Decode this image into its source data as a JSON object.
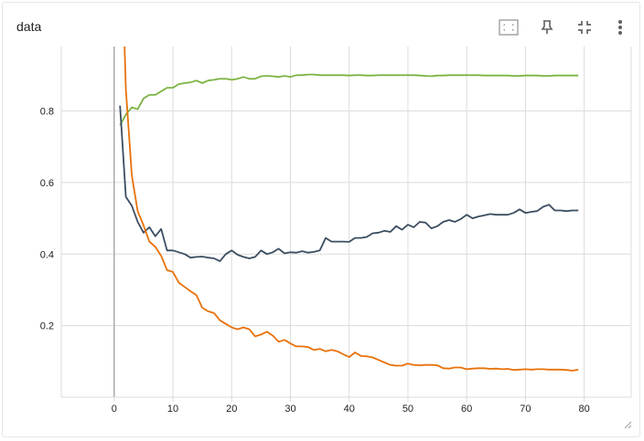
{
  "card": {
    "title": "data"
  },
  "toolbar": {
    "icons": [
      "fit-domain-icon",
      "pin-icon",
      "collapse-icon",
      "more-vert-icon"
    ]
  },
  "colors": {
    "grid": "#dcdcdc",
    "axis": "#9e9e9e",
    "series": [
      "#7cb342",
      "#3b4d61",
      "#e8710a"
    ]
  },
  "chart_data": {
    "type": "line",
    "title": "data",
    "xlabel": "",
    "ylabel": "",
    "xlim": [
      -9,
      88
    ],
    "ylim": [
      0,
      0.98
    ],
    "xticks": [
      0,
      10,
      20,
      30,
      40,
      50,
      60,
      70,
      80
    ],
    "xtick_labels": [
      "0",
      "10",
      "20",
      "30",
      "40",
      "50",
      "60",
      "70",
      "80"
    ],
    "yticks": [
      0.2,
      0.4,
      0.6,
      0.8
    ],
    "ytick_labels": [
      "0.2",
      "0.4",
      "0.6",
      "0.8"
    ],
    "grid": true,
    "legend": "none",
    "series": [
      {
        "color": "#7cb342",
        "x": [
          1,
          2,
          3,
          4,
          5,
          6,
          7,
          8,
          9,
          10,
          11,
          12,
          13,
          14,
          15,
          16,
          17,
          18,
          19,
          20,
          21,
          22,
          23,
          24,
          25,
          26,
          27,
          28,
          29,
          30,
          31,
          32,
          33,
          34,
          35,
          36,
          37,
          38,
          39,
          40,
          41,
          42,
          43,
          44,
          45,
          46,
          47,
          48,
          49,
          50,
          51,
          52,
          53,
          54,
          55,
          56,
          57,
          58,
          59,
          60,
          61,
          62,
          63,
          64,
          65,
          66,
          67,
          68,
          69,
          70,
          71,
          72,
          73,
          74,
          75,
          76,
          77,
          78,
          79
        ],
        "y": [
          0.76,
          0.79,
          0.81,
          0.805,
          0.835,
          0.845,
          0.845,
          0.855,
          0.865,
          0.865,
          0.875,
          0.878,
          0.88,
          0.885,
          0.878,
          0.885,
          0.887,
          0.89,
          0.89,
          0.887,
          0.89,
          0.895,
          0.89,
          0.89,
          0.897,
          0.898,
          0.897,
          0.895,
          0.898,
          0.895,
          0.9,
          0.9,
          0.902,
          0.902,
          0.9,
          0.9,
          0.9,
          0.9,
          0.9,
          0.899,
          0.9,
          0.9,
          0.899,
          0.899,
          0.9,
          0.9,
          0.9,
          0.9,
          0.9,
          0.9,
          0.9,
          0.899,
          0.898,
          0.897,
          0.899,
          0.899,
          0.9,
          0.9,
          0.9,
          0.9,
          0.9,
          0.9,
          0.899,
          0.899,
          0.899,
          0.899,
          0.899,
          0.898,
          0.898,
          0.899,
          0.899,
          0.899,
          0.898,
          0.898,
          0.899,
          0.899,
          0.899,
          0.899,
          0.899
        ]
      },
      {
        "color": "#3b4d61",
        "x": [
          1,
          2,
          3,
          4,
          5,
          6,
          7,
          8,
          9,
          10,
          11,
          12,
          13,
          14,
          15,
          16,
          17,
          18,
          19,
          20,
          21,
          22,
          23,
          24,
          25,
          26,
          27,
          28,
          29,
          30,
          31,
          32,
          33,
          34,
          35,
          36,
          37,
          38,
          39,
          40,
          41,
          42,
          43,
          44,
          45,
          46,
          47,
          48,
          49,
          50,
          51,
          52,
          53,
          54,
          55,
          56,
          57,
          58,
          59,
          60,
          61,
          62,
          63,
          64,
          65,
          66,
          67,
          68,
          69,
          70,
          71,
          72,
          73,
          74,
          75,
          76,
          77,
          78,
          79
        ],
        "y": [
          0.815,
          0.56,
          0.535,
          0.49,
          0.46,
          0.475,
          0.45,
          0.47,
          0.41,
          0.41,
          0.405,
          0.4,
          0.39,
          0.392,
          0.393,
          0.39,
          0.388,
          0.38,
          0.4,
          0.41,
          0.398,
          0.392,
          0.388,
          0.392,
          0.41,
          0.4,
          0.405,
          0.415,
          0.402,
          0.405,
          0.404,
          0.408,
          0.404,
          0.406,
          0.41,
          0.445,
          0.435,
          0.435,
          0.435,
          0.434,
          0.445,
          0.445,
          0.448,
          0.458,
          0.46,
          0.465,
          0.462,
          0.478,
          0.468,
          0.482,
          0.475,
          0.49,
          0.488,
          0.472,
          0.478,
          0.49,
          0.495,
          0.49,
          0.498,
          0.51,
          0.5,
          0.505,
          0.508,
          0.512,
          0.51,
          0.51,
          0.51,
          0.515,
          0.525,
          0.515,
          0.518,
          0.52,
          0.532,
          0.538,
          0.522,
          0.522,
          0.52,
          0.522,
          0.522
        ]
      },
      {
        "color": "#e8710a",
        "x": [
          1,
          2,
          3,
          4,
          5,
          6,
          7,
          8,
          9,
          10,
          11,
          12,
          13,
          14,
          15,
          16,
          17,
          18,
          19,
          20,
          21,
          22,
          23,
          24,
          25,
          26,
          27,
          28,
          29,
          30,
          31,
          32,
          33,
          34,
          35,
          36,
          37,
          38,
          39,
          40,
          41,
          42,
          43,
          44,
          45,
          46,
          47,
          48,
          49,
          50,
          51,
          52,
          53,
          54,
          55,
          56,
          57,
          58,
          59,
          60,
          61,
          62,
          63,
          64,
          65,
          66,
          67,
          68,
          69,
          70,
          71,
          72,
          73,
          74,
          75,
          76,
          77,
          78,
          79
        ],
        "y": [
          1.4,
          0.86,
          0.62,
          0.52,
          0.48,
          0.435,
          0.42,
          0.395,
          0.355,
          0.35,
          0.32,
          0.308,
          0.296,
          0.285,
          0.25,
          0.24,
          0.235,
          0.215,
          0.205,
          0.195,
          0.19,
          0.195,
          0.19,
          0.17,
          0.175,
          0.183,
          0.172,
          0.155,
          0.16,
          0.15,
          0.142,
          0.142,
          0.14,
          0.132,
          0.135,
          0.128,
          0.132,
          0.128,
          0.12,
          0.112,
          0.125,
          0.115,
          0.114,
          0.111,
          0.104,
          0.097,
          0.09,
          0.088,
          0.088,
          0.094,
          0.09,
          0.089,
          0.09,
          0.09,
          0.089,
          0.081,
          0.08,
          0.083,
          0.083,
          0.078,
          0.08,
          0.081,
          0.081,
          0.079,
          0.08,
          0.078,
          0.079,
          0.076,
          0.077,
          0.078,
          0.077,
          0.078,
          0.078,
          0.077,
          0.077,
          0.077,
          0.076,
          0.074,
          0.077
        ]
      }
    ]
  }
}
